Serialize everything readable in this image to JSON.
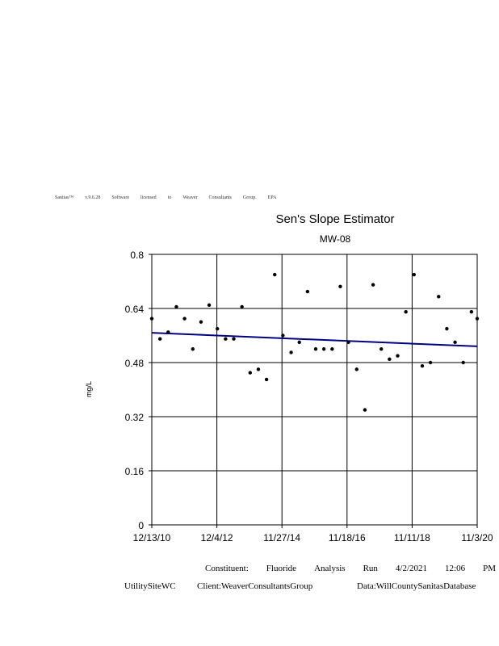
{
  "watermark": {
    "parts": [
      "Sanitas™",
      "v.9.6.28",
      "Software",
      "licensed",
      "to",
      "Weaver",
      "Consultants",
      "Group.",
      "EPA"
    ]
  },
  "chart_data": {
    "type": "scatter",
    "title": "Sen's Slope Estimator",
    "subtitle": "MW-08",
    "ylabel": "mg/L",
    "xlabel": "",
    "ylim": [
      0,
      0.8
    ],
    "xlim": [
      "2010-12-13",
      "2020-11-03"
    ],
    "y_ticks": [
      "0",
      "0.16",
      "0.32",
      "0.48",
      "0.64",
      "0.8"
    ],
    "x_ticks": [
      "12/13/10",
      "12/4/12",
      "11/27/14",
      "11/18/16",
      "11/11/18",
      "11/3/20"
    ],
    "grid": true,
    "points_color": "#000000",
    "trend_color": "#000080",
    "series": [
      {
        "x": [
          "2010-12-13",
          "2011-03-14",
          "2011-06-13",
          "2011-09-12",
          "2011-12-12",
          "2012-03-12",
          "2012-06-11",
          "2012-09-10",
          "2012-12-10",
          "2013-03-11",
          "2013-06-10",
          "2013-09-09",
          "2013-12-09",
          "2014-03-10",
          "2014-06-09",
          "2014-09-08",
          "2014-12-08",
          "2015-03-09",
          "2015-06-08",
          "2015-09-07",
          "2015-12-07",
          "2016-03-07",
          "2016-06-06",
          "2016-09-05",
          "2016-12-05",
          "2017-03-06",
          "2017-06-05",
          "2017-09-04",
          "2017-12-04",
          "2018-03-05",
          "2018-06-04",
          "2018-09-03",
          "2018-12-03",
          "2019-03-04",
          "2019-06-03",
          "2019-09-02",
          "2019-12-02",
          "2020-03-02",
          "2020-06-01",
          "2020-08-31",
          "2020-11-03"
        ],
        "y": [
          0.61,
          0.55,
          0.57,
          0.645,
          0.61,
          0.52,
          0.6,
          0.65,
          0.58,
          0.55,
          0.55,
          0.645,
          0.45,
          0.46,
          0.43,
          0.74,
          0.56,
          0.51,
          0.54,
          0.69,
          0.52,
          0.52,
          0.52,
          0.705,
          0.54,
          0.46,
          0.34,
          0.71,
          0.52,
          0.49,
          0.5,
          0.63,
          0.74,
          0.47,
          0.48,
          0.675,
          0.58,
          0.54,
          0.48,
          0.63,
          0.61
        ]
      }
    ],
    "trend": {
      "x": [
        "2010-12-13",
        "2020-11-03"
      ],
      "y": [
        0.568,
        0.528
      ]
    }
  },
  "footer": {
    "line1": [
      "Constituent:",
      "Fluoride",
      "Analysis",
      "Run",
      "4/2/2021",
      "12:06",
      "PM"
    ],
    "site": "UtilitySiteWC",
    "client": "Client:WeaverConsultantsGroup",
    "data": "Data:WillCountySanitasDatabase"
  }
}
